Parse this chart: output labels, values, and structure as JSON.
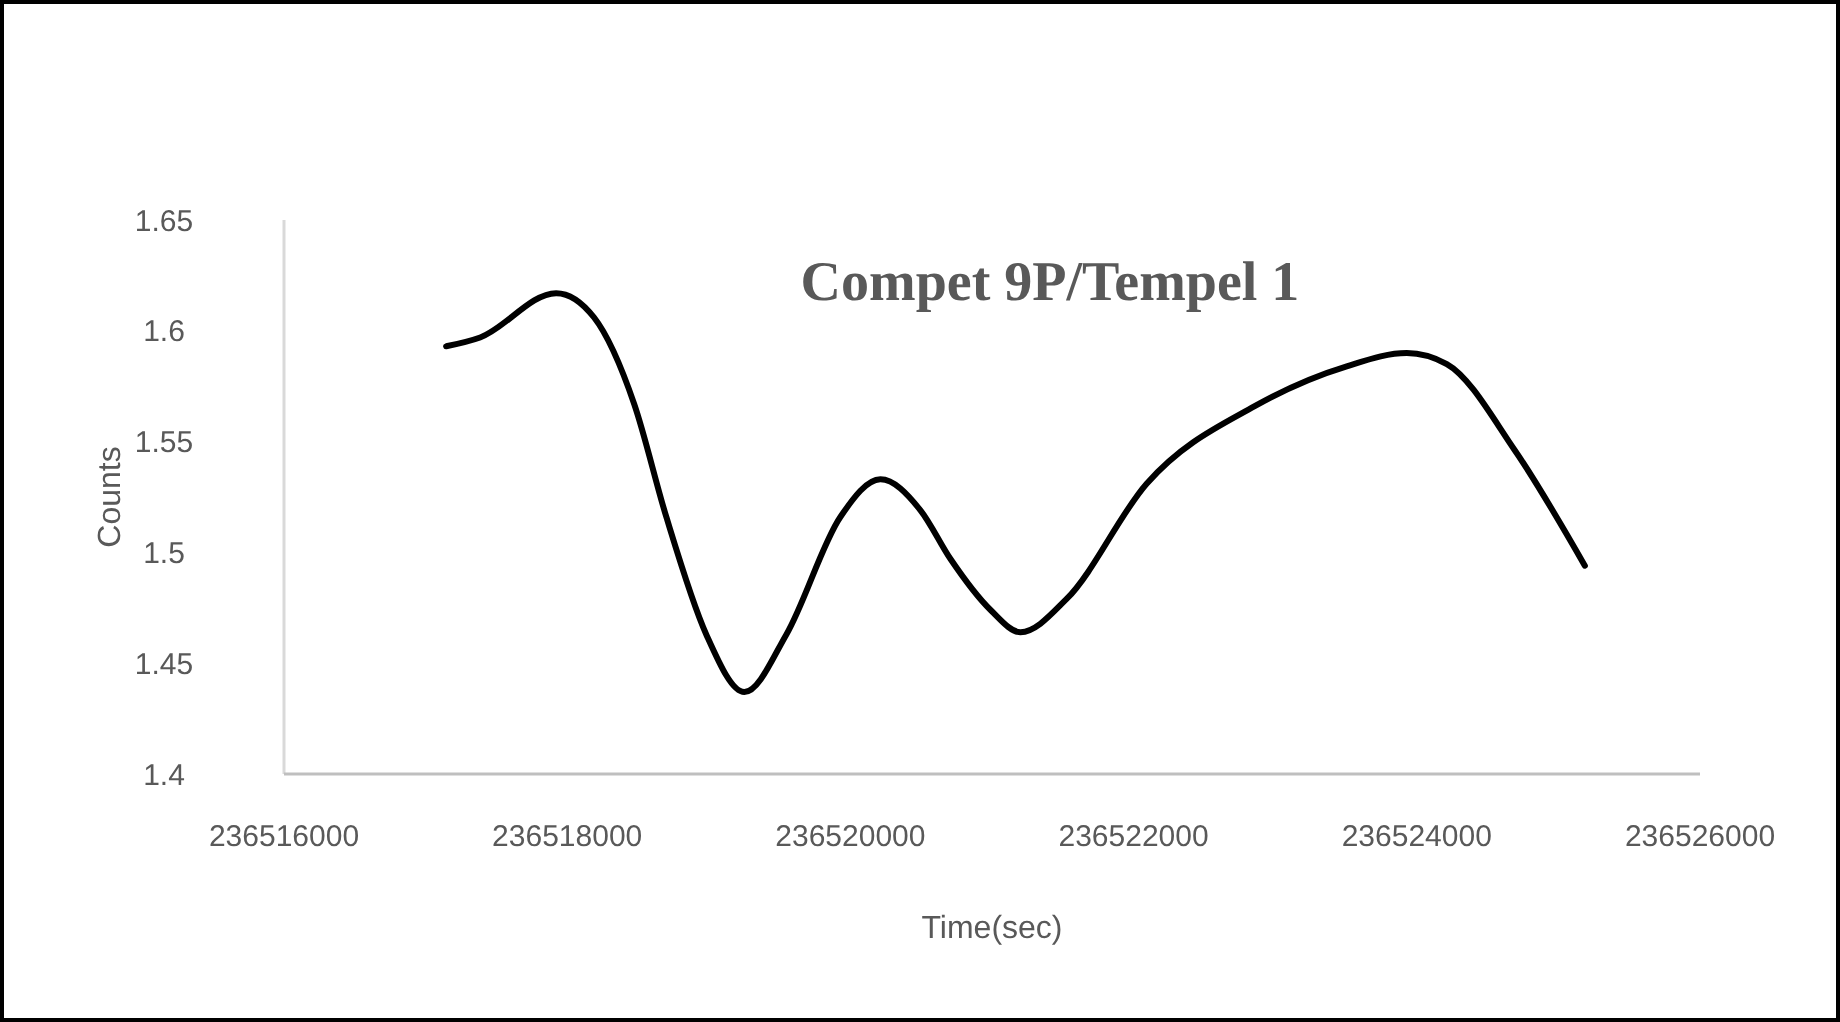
{
  "chart_data": {
    "type": "line",
    "title": "Compet 9P/Tempel 1",
    "xlabel": "Time(sec)",
    "ylabel": "Counts",
    "x": [
      236517145,
      236517385,
      236517922,
      236518190,
      236518473,
      236518700,
      236518982,
      236519251,
      236519548,
      236519929,
      236520212,
      236520495,
      236520707,
      236520990,
      236521201,
      236521527,
      236522092,
      236522855,
      236523505,
      236523929,
      236524212,
      236524693,
      236525187
    ],
    "series": [
      {
        "color": "#000000",
        "values": [
          1.593,
          1.597,
          1.617,
          1.606,
          1.567,
          1.516,
          1.463,
          1.437,
          1.463,
          1.516,
          1.533,
          1.519,
          1.497,
          1.474,
          1.464,
          1.479,
          1.531,
          1.566,
          1.584,
          1.59,
          1.585,
          1.546,
          1.494
        ]
      }
    ],
    "xlim": [
      236516000,
      236526000
    ],
    "xticks": [
      236516000,
      236518000,
      236520000,
      236522000,
      236524000,
      236526000
    ],
    "ylim": [
      1.4,
      1.65
    ],
    "yticks": [
      1.4,
      1.45,
      1.5,
      1.55,
      1.6,
      1.65
    ],
    "grid": false,
    "marker": "none",
    "line_style": "solid"
  }
}
